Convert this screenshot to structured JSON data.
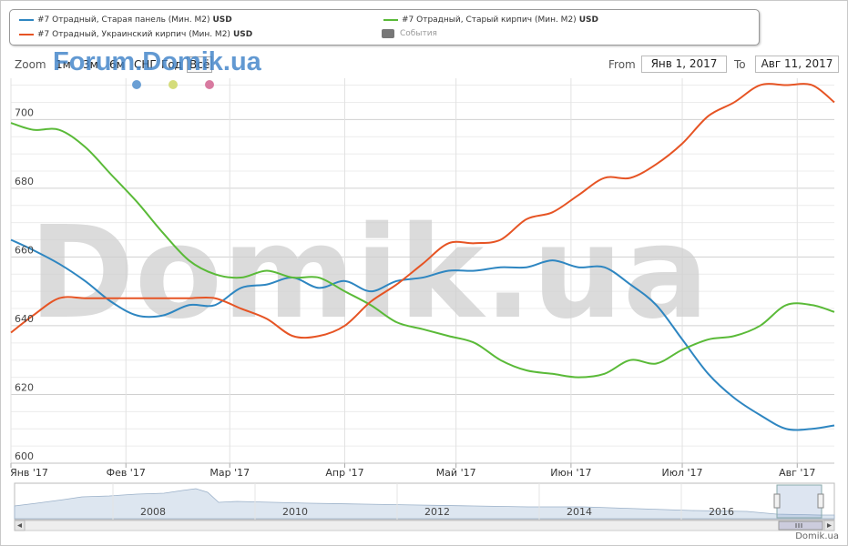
{
  "legend": {
    "items": [
      {
        "label": "#7 Отрадный, Старая панель (Мин. M2)",
        "unit": "USD",
        "color": "#2e86c1"
      },
      {
        "label": "#7 Отрадный, Старый кирпич (Мин. M2)",
        "unit": "USD",
        "color": "#5aba38"
      },
      {
        "label": "#7 Отрадный, Украинский кирпич (Мин. M2)",
        "unit": "USD",
        "color": "#e65424"
      },
      {
        "label": "События",
        "unit": "",
        "color": "#777777"
      }
    ]
  },
  "toolbar": {
    "zoom_label": "Zoom",
    "zoom_buttons": [
      "1м",
      "3м",
      "6м",
      "СНГ",
      "Год",
      "Всё"
    ],
    "selected_zoom": "Всё",
    "from_label": "From",
    "from_value": "Янв 1, 2017",
    "to_label": "To",
    "to_value": "Авг 11, 2017"
  },
  "watermarks": {
    "forum": "Forum.Domik.ua",
    "big": "Domik.ua"
  },
  "footer": {
    "credit": "Domik.ua"
  },
  "event_marker_colors": [
    "#6a9fd4",
    "#d4dc7a",
    "#d87aa0"
  ],
  "chart_data": {
    "type": "line",
    "x_axis": {
      "ticks": [
        "Янв '17",
        "Фев '17",
        "Мар '17",
        "Апр '17",
        "Май '17",
        "Июн '17",
        "Июл '17",
        "Авг '17"
      ],
      "range": [
        "2017-01-01",
        "2017-08-11"
      ]
    },
    "y_axis": {
      "ticks": [
        600,
        620,
        640,
        660,
        680,
        700
      ],
      "range": [
        600,
        712
      ],
      "grid": true
    },
    "series": [
      {
        "name": "#7 Отрадный, Старая панель (Мин. M2)",
        "color": "#2e86c1",
        "points": [
          [
            "2017-01-01",
            665
          ],
          [
            "2017-01-07",
            662
          ],
          [
            "2017-01-14",
            658
          ],
          [
            "2017-01-21",
            653
          ],
          [
            "2017-01-28",
            647
          ],
          [
            "2017-02-04",
            643
          ],
          [
            "2017-02-11",
            643
          ],
          [
            "2017-02-18",
            646
          ],
          [
            "2017-02-25",
            646
          ],
          [
            "2017-03-04",
            651
          ],
          [
            "2017-03-11",
            652
          ],
          [
            "2017-03-18",
            654
          ],
          [
            "2017-03-25",
            651
          ],
          [
            "2017-04-01",
            653
          ],
          [
            "2017-04-08",
            650
          ],
          [
            "2017-04-15",
            653
          ],
          [
            "2017-04-22",
            654
          ],
          [
            "2017-04-29",
            656
          ],
          [
            "2017-05-06",
            656
          ],
          [
            "2017-05-13",
            657
          ],
          [
            "2017-05-20",
            657
          ],
          [
            "2017-05-27",
            659
          ],
          [
            "2017-06-03",
            657
          ],
          [
            "2017-06-10",
            657
          ],
          [
            "2017-06-17",
            652
          ],
          [
            "2017-06-24",
            646
          ],
          [
            "2017-07-01",
            636
          ],
          [
            "2017-07-08",
            626
          ],
          [
            "2017-07-15",
            619
          ],
          [
            "2017-07-22",
            614
          ],
          [
            "2017-07-29",
            610
          ],
          [
            "2017-08-05",
            610
          ],
          [
            "2017-08-11",
            611
          ]
        ]
      },
      {
        "name": "#7 Отрадный, Старый кирпич (Мин. M2)",
        "color": "#5aba38",
        "points": [
          [
            "2017-01-01",
            699
          ],
          [
            "2017-01-07",
            697
          ],
          [
            "2017-01-14",
            697
          ],
          [
            "2017-01-21",
            692
          ],
          [
            "2017-01-28",
            684
          ],
          [
            "2017-02-04",
            676
          ],
          [
            "2017-02-11",
            667
          ],
          [
            "2017-02-18",
            659
          ],
          [
            "2017-02-25",
            655
          ],
          [
            "2017-03-04",
            654
          ],
          [
            "2017-03-11",
            656
          ],
          [
            "2017-03-18",
            654
          ],
          [
            "2017-03-25",
            654
          ],
          [
            "2017-04-01",
            650
          ],
          [
            "2017-04-08",
            646
          ],
          [
            "2017-04-15",
            641
          ],
          [
            "2017-04-22",
            639
          ],
          [
            "2017-04-29",
            637
          ],
          [
            "2017-05-06",
            635
          ],
          [
            "2017-05-13",
            630
          ],
          [
            "2017-05-20",
            627
          ],
          [
            "2017-05-27",
            626
          ],
          [
            "2017-06-03",
            625
          ],
          [
            "2017-06-10",
            626
          ],
          [
            "2017-06-17",
            630
          ],
          [
            "2017-06-24",
            629
          ],
          [
            "2017-07-01",
            633
          ],
          [
            "2017-07-08",
            636
          ],
          [
            "2017-07-15",
            637
          ],
          [
            "2017-07-22",
            640
          ],
          [
            "2017-07-29",
            646
          ],
          [
            "2017-08-05",
            646
          ],
          [
            "2017-08-11",
            644
          ]
        ]
      },
      {
        "name": "#7 Отрадный, Украинский кирпич (Мин. M2)",
        "color": "#e65424",
        "points": [
          [
            "2017-01-01",
            638
          ],
          [
            "2017-01-07",
            643
          ],
          [
            "2017-01-14",
            648
          ],
          [
            "2017-01-21",
            648
          ],
          [
            "2017-01-28",
            648
          ],
          [
            "2017-02-04",
            648
          ],
          [
            "2017-02-11",
            648
          ],
          [
            "2017-02-18",
            648
          ],
          [
            "2017-02-25",
            648
          ],
          [
            "2017-03-04",
            645
          ],
          [
            "2017-03-11",
            642
          ],
          [
            "2017-03-18",
            637
          ],
          [
            "2017-03-25",
            637
          ],
          [
            "2017-04-01",
            640
          ],
          [
            "2017-04-08",
            647
          ],
          [
            "2017-04-15",
            652
          ],
          [
            "2017-04-22",
            658
          ],
          [
            "2017-04-29",
            664
          ],
          [
            "2017-05-06",
            664
          ],
          [
            "2017-05-13",
            665
          ],
          [
            "2017-05-20",
            671
          ],
          [
            "2017-05-27",
            673
          ],
          [
            "2017-06-03",
            678
          ],
          [
            "2017-06-10",
            683
          ],
          [
            "2017-06-17",
            683
          ],
          [
            "2017-06-24",
            687
          ],
          [
            "2017-07-01",
            693
          ],
          [
            "2017-07-08",
            701
          ],
          [
            "2017-07-15",
            705
          ],
          [
            "2017-07-22",
            710
          ],
          [
            "2017-07-29",
            710
          ],
          [
            "2017-08-05",
            710
          ],
          [
            "2017-08-11",
            705
          ]
        ]
      }
    ],
    "navigator": {
      "year_labels": [
        "2008",
        "2010",
        "2012",
        "2014",
        "2016"
      ]
    }
  }
}
